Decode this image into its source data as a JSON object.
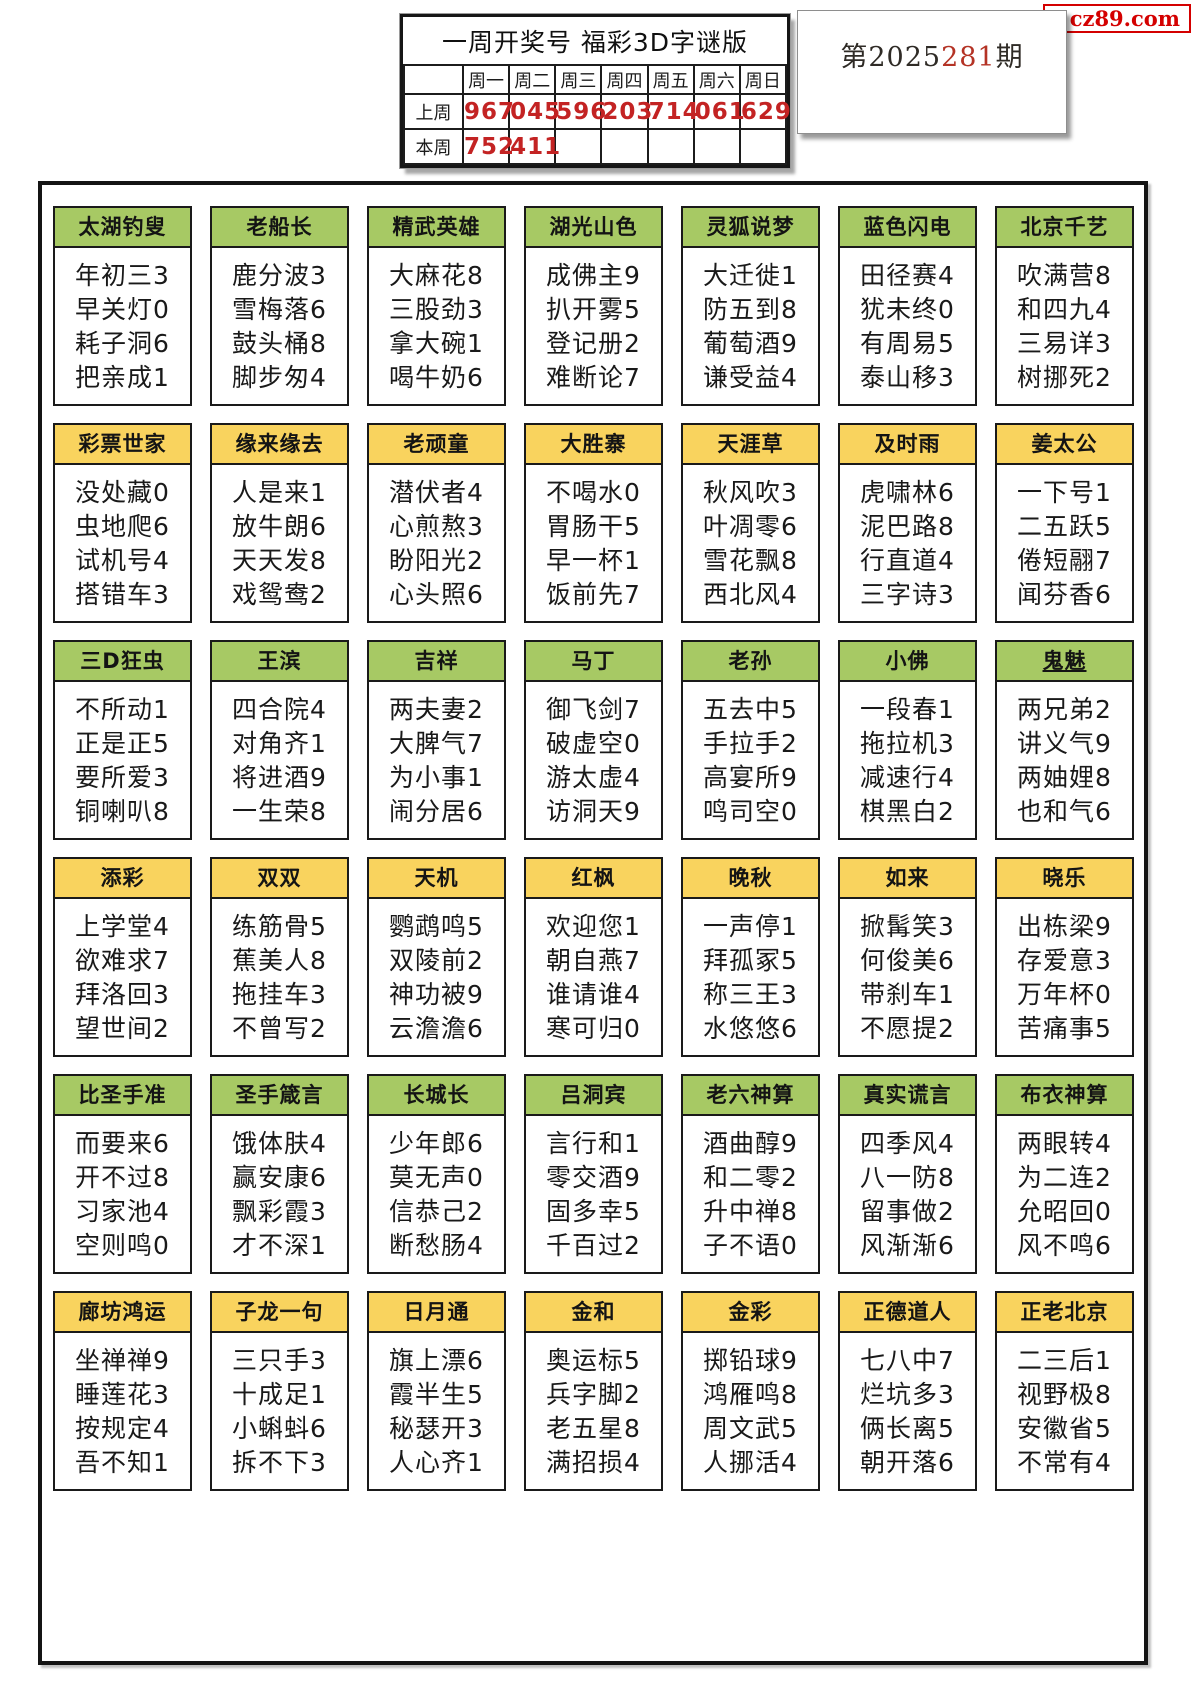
{
  "logo": {
    "text": "cz89.com"
  },
  "issue": {
    "dark_part": "第2025",
    "red_part": "281",
    "suffix": "期"
  },
  "week_table": {
    "title": "一周开奖号 福彩3D字谜版",
    "days": [
      "周一",
      "周二",
      "周三",
      "周四",
      "周五",
      "周六",
      "周日"
    ],
    "rows": [
      {
        "label": "上周",
        "values": [
          "967",
          "045",
          "596",
          "203",
          "714",
          "061",
          "629"
        ]
      },
      {
        "label": "本周",
        "values": [
          "752",
          "411",
          "",
          "",
          "",
          "",
          ""
        ]
      }
    ]
  },
  "colors": {
    "header_green": "#a7c964",
    "header_yellow": "#f9d35e",
    "number_red": "#c32323",
    "issue_red": "#b43325",
    "logo_red": "#d40000",
    "logo_yellow": "#ffe900"
  },
  "grid": {
    "rows": [
      {
        "header_color": "header_green",
        "cards": [
          {
            "title": "太湖钓叟",
            "lines": [
              "年初三3",
              "早关灯0",
              "耗子洞6",
              "把亲成1"
            ]
          },
          {
            "title": "老船长",
            "lines": [
              "鹿分波3",
              "雪梅落6",
              "鼓头桶8",
              "脚步匆4"
            ]
          },
          {
            "title": "精武英雄",
            "lines": [
              "大麻花8",
              "三股劲3",
              "拿大碗1",
              "喝牛奶6"
            ]
          },
          {
            "title": "湖光山色",
            "lines": [
              "成佛主9",
              "扒开雾5",
              "登记册2",
              "难断论7"
            ]
          },
          {
            "title": "灵狐说梦",
            "lines": [
              "大迁徙1",
              "防五到8",
              "葡萄酒9",
              "谦受益4"
            ]
          },
          {
            "title": "蓝色闪电",
            "lines": [
              "田径赛4",
              "犹未终0",
              "有周易5",
              "泰山移3"
            ]
          },
          {
            "title": "北京千艺",
            "lines": [
              "吹满营8",
              "和四九4",
              "三易详3",
              "树挪死2"
            ]
          }
        ]
      },
      {
        "header_color": "header_yellow",
        "cards": [
          {
            "title": "彩票世家",
            "lines": [
              "没处藏0",
              "虫地爬6",
              "试机号4",
              "搭错车3"
            ]
          },
          {
            "title": "缘来缘去",
            "lines": [
              "人是来1",
              "放牛朗6",
              "天天发8",
              "戏鸳鸯2"
            ]
          },
          {
            "title": "老顽童",
            "lines": [
              "潜伏者4",
              "心煎熬3",
              "盼阳光2",
              "心头照6"
            ]
          },
          {
            "title": "大胜寨",
            "lines": [
              "不喝水0",
              "胃肠干5",
              "早一杯1",
              "饭前先7"
            ]
          },
          {
            "title": "天涯草",
            "lines": [
              "秋风吹3",
              "叶凋零6",
              "雪花飘8",
              "西北风4"
            ]
          },
          {
            "title": "及时雨",
            "lines": [
              "虎啸林6",
              "泥巴路8",
              "行直道4",
              "三字诗3"
            ]
          },
          {
            "title": "姜太公",
            "lines": [
              "一下号1",
              "二五跃5",
              "倦短翮7",
              "闻芬香6"
            ]
          }
        ]
      },
      {
        "header_color": "header_green",
        "cards": [
          {
            "title": "三D狂虫",
            "lines": [
              "不所动1",
              "正是正5",
              "要所爱3",
              "铜喇叭8"
            ]
          },
          {
            "title": "王滨",
            "lines": [
              "四合院4",
              "对角齐1",
              "将进酒9",
              "一生荣8"
            ]
          },
          {
            "title": "吉祥",
            "lines": [
              "两夫妻2",
              "大脾气7",
              "为小事1",
              "闹分居6"
            ]
          },
          {
            "title": "马丁",
            "lines": [
              "御飞剑7",
              "破虚空0",
              "游太虚4",
              "访洞天9"
            ]
          },
          {
            "title": "老孙",
            "lines": [
              "五去中5",
              "手拉手2",
              "高宴所9",
              "鸣司空0"
            ]
          },
          {
            "title": "小佛",
            "lines": [
              "一段春1",
              "拖拉机3",
              "减速行4",
              "棋黑白2"
            ]
          },
          {
            "title": "鬼魅",
            "underline": true,
            "lines": [
              "两兄弟2",
              "讲义气9",
              "两妯娌8",
              "也和气6"
            ]
          }
        ]
      },
      {
        "header_color": "header_yellow",
        "cards": [
          {
            "title": "添彩",
            "lines": [
              "上学堂4",
              "欲难求7",
              "拜洛回3",
              "望世间2"
            ]
          },
          {
            "title": "双双",
            "lines": [
              "练筋骨5",
              "蕉美人8",
              "拖挂车3",
              "不曾写2"
            ]
          },
          {
            "title": "天机",
            "lines": [
              "鹦鹉鸣5",
              "双陵前2",
              "神功被9",
              "云澹澹6"
            ]
          },
          {
            "title": "红枫",
            "lines": [
              "欢迎您1",
              "朝自燕7",
              "谁请谁4",
              "寒可归0"
            ]
          },
          {
            "title": "晚秋",
            "lines": [
              "一声停1",
              "拜孤冢5",
              "称三王3",
              "水悠悠6"
            ]
          },
          {
            "title": "如来",
            "lines": [
              "掀髯笑3",
              "何俊美6",
              "带刹车1",
              "不愿提2"
            ]
          },
          {
            "title": "晓乐",
            "lines": [
              "出栋梁9",
              "存爱意3",
              "万年杯0",
              "苦痛事5"
            ]
          }
        ]
      },
      {
        "header_color": "header_green",
        "cards": [
          {
            "title": "比圣手准",
            "lines": [
              "而要来6",
              "开不过8",
              "习家池4",
              "空则鸣0"
            ]
          },
          {
            "title": "圣手箴言",
            "lines": [
              "饿体肤4",
              "赢安康6",
              "飘彩霞3",
              "才不深1"
            ]
          },
          {
            "title": "长城长",
            "lines": [
              "少年郎6",
              "莫无声0",
              "信恭己2",
              "断愁肠4"
            ]
          },
          {
            "title": "吕洞宾",
            "lines": [
              "言行和1",
              "零交酒9",
              "固多幸5",
              "千百过2"
            ]
          },
          {
            "title": "老六神算",
            "lines": [
              "酒曲醇9",
              "和二零2",
              "升中禅8",
              "子不语0"
            ]
          },
          {
            "title": "真实谎言",
            "lines": [
              "四季风4",
              "八一防8",
              "留事做2",
              "风渐渐6"
            ]
          },
          {
            "title": "布衣神算",
            "lines": [
              "两眼转4",
              "为二连2",
              "允昭回0",
              "风不鸣6"
            ]
          }
        ]
      },
      {
        "header_color": "header_yellow",
        "cards": [
          {
            "title": "廊坊鸿运",
            "lines": [
              "坐禅禅9",
              "睡莲花3",
              "按规定4",
              "吾不知1"
            ]
          },
          {
            "title": "子龙一句",
            "lines": [
              "三只手3",
              "十成足1",
              "小蝌蚪6",
              "拆不下3"
            ]
          },
          {
            "title": "日月通",
            "lines": [
              "旗上漂6",
              "霞半生5",
              "秘瑟开3",
              "人心齐1"
            ]
          },
          {
            "title": "金和",
            "lines": [
              "奥运标5",
              "兵字脚2",
              "老五星8",
              "满招损4"
            ]
          },
          {
            "title": "金彩",
            "lines": [
              "掷铅球9",
              "鸿雁鸣8",
              "周文武5",
              "人挪活4"
            ]
          },
          {
            "title": "正德道人",
            "lines": [
              "七八中7",
              "烂坑多3",
              "俩长离5",
              "朝开落6"
            ]
          },
          {
            "title": "正老北京",
            "lines": [
              "二三后1",
              "视野极8",
              "安徽省5",
              "不常有4"
            ]
          }
        ]
      }
    ]
  }
}
